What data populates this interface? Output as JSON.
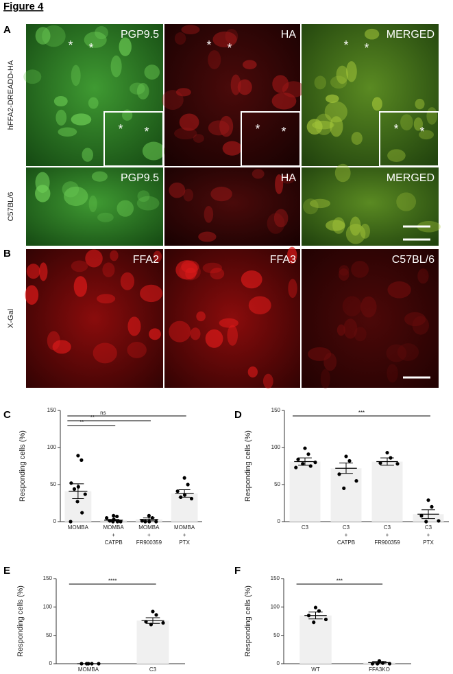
{
  "figure_title": "Figure 4",
  "panel_a": {
    "label": "A",
    "marker": "*",
    "rows": [
      {
        "label": "hFFA2-DREADD-HA",
        "cells": [
          "PGP9.5",
          "HA",
          "MERGED"
        ]
      },
      {
        "label": "C57BL/6",
        "cells": [
          "PGP9.5",
          "HA",
          "MERGED"
        ]
      }
    ]
  },
  "panel_b": {
    "label": "B",
    "rows": [
      {
        "label": "X-Gal",
        "cells": [
          "FFA2",
          "FFA3",
          "C57BL/6"
        ]
      }
    ]
  },
  "chart_data": [
    {
      "type": "bar",
      "panel_label": "C",
      "ylabel": "Responding cells (%)",
      "categories": [
        [
          "MOMBA"
        ],
        [
          "MOMBA",
          "+",
          "CATPB"
        ],
        [
          "MOMBA",
          "+",
          "FR900359"
        ],
        [
          "MOMBA",
          "+",
          "PTX"
        ]
      ],
      "values": [
        41,
        2,
        3,
        38
      ],
      "sem": [
        10,
        1,
        2,
        5
      ],
      "points": [
        [
          89,
          83,
          52,
          47,
          44,
          37,
          27,
          12,
          0
        ],
        [
          8,
          7,
          5,
          3,
          1,
          0,
          0,
          0
        ],
        [
          8,
          5,
          1,
          0,
          0,
          0
        ],
        [
          59,
          50,
          41,
          36,
          33,
          31
        ]
      ],
      "color": "#f0f0f0",
      "point_color": "#000000",
      "ylim": [
        0,
        150
      ],
      "yticks": [
        0,
        50,
        100,
        150
      ],
      "comparisons": [
        {
          "label": "ns",
          "categories": [
            0,
            3
          ]
        },
        {
          "label": "**",
          "categories": [
            0,
            2
          ]
        },
        {
          "label": "**",
          "categories": [
            0,
            1
          ]
        }
      ]
    },
    {
      "type": "bar",
      "panel_label": "D",
      "ylabel": "Responding cells (%)",
      "categories": [
        [
          "C3"
        ],
        [
          "C3",
          "+",
          "CATPB"
        ],
        [
          "C3",
          "+",
          "FR900359"
        ],
        [
          "C3",
          "+",
          "PTX"
        ]
      ],
      "values": [
        81,
        72,
        81,
        10
      ],
      "sem": [
        5,
        7,
        5,
        6
      ],
      "points": [
        [
          99,
          91,
          84,
          80,
          78,
          75,
          73
        ],
        [
          88,
          82,
          64,
          55,
          45
        ],
        [
          93,
          86,
          79,
          78
        ],
        [
          29,
          20,
          8,
          1,
          0
        ]
      ],
      "color": "#f0f0f0",
      "point_color": "#000000",
      "ylim": [
        0,
        150
      ],
      "yticks": [
        0,
        50,
        100,
        150
      ],
      "comparisons": [
        {
          "label": "***",
          "categories": [
            0,
            3
          ]
        }
      ]
    },
    {
      "type": "bar",
      "panel_label": "E",
      "ylabel": "Responding cells (%)",
      "categories": [
        [
          "MOMBA"
        ],
        [
          "C3"
        ]
      ],
      "values": [
        0,
        76
      ],
      "sem": [
        0,
        5
      ],
      "points": [
        [
          0,
          0,
          0,
          0,
          0
        ],
        [
          92,
          86,
          74,
          72,
          69
        ]
      ],
      "color": "#f0f0f0",
      "point_color": "#000000",
      "ylim": [
        0,
        150
      ],
      "yticks": [
        0,
        50,
        100,
        150
      ],
      "comparisons": [
        {
          "label": "****",
          "categories": [
            0,
            1
          ]
        }
      ]
    },
    {
      "type": "bar",
      "panel_label": "F",
      "ylabel": "Responding cells (%)",
      "categories": [
        [
          "WT"
        ],
        [
          "FFA3KO"
        ]
      ],
      "values": [
        85,
        2
      ],
      "sem": [
        6,
        2
      ],
      "points": [
        [
          99,
          93,
          85,
          78,
          73
        ],
        [
          5,
          1,
          0,
          0,
          0
        ]
      ],
      "color": "#f0f0f0",
      "point_color": "#000000",
      "ylim": [
        0,
        150
      ],
      "yticks": [
        0,
        50,
        100,
        150
      ],
      "comparisons": [
        {
          "label": "***",
          "categories": [
            0,
            1
          ]
        }
      ]
    }
  ]
}
